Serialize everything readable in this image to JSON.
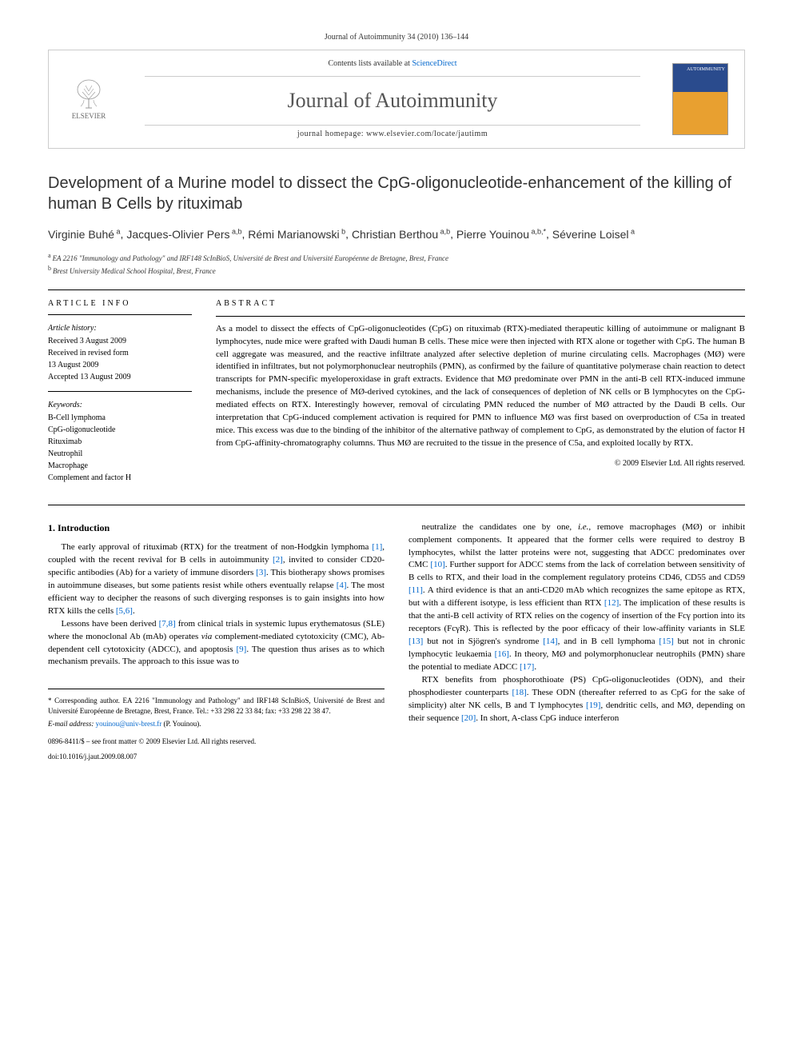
{
  "pageHeader": "Journal of Autoimmunity 34 (2010) 136–144",
  "journalBox": {
    "elsevierLabel": "ELSEVIER",
    "contentsLine": "Contents lists available at ",
    "contentsLink": "ScienceDirect",
    "journalName": "Journal of Autoimmunity",
    "homepageLine": "journal homepage: www.elsevier.com/locate/jautimm",
    "coverTitle": "AUTOIMMUNITY"
  },
  "article": {
    "title": "Development of a Murine model to dissect the CpG-oligonucleotide-enhancement of the killing of human B Cells by rituximab",
    "authorsHtmlParts": [
      {
        "name": "Virginie Buhé",
        "sup": "a"
      },
      {
        "name": "Jacques-Olivier Pers",
        "sup": "a,b"
      },
      {
        "name": "Rémi Marianowski",
        "sup": "b"
      },
      {
        "name": "Christian Berthou",
        "sup": "a,b"
      },
      {
        "name": "Pierre Youinou",
        "sup": "a,b,*"
      },
      {
        "name": "Séverine Loisel",
        "sup": "a"
      }
    ],
    "affiliations": [
      {
        "sup": "a",
        "text": "EA 2216 \"Immunology and Pathology\" and IRF148 ScInBioS, Université de Brest and Université Européenne de Bretagne, Brest, France"
      },
      {
        "sup": "b",
        "text": "Brest University Medical School Hospital, Brest, France"
      }
    ]
  },
  "articleInfo": {
    "heading": "ARTICLE INFO",
    "historyLabel": "Article history:",
    "history": [
      "Received 3 August 2009",
      "Received in revised form",
      "13 August 2009",
      "Accepted 13 August 2009"
    ],
    "keywordsLabel": "Keywords:",
    "keywords": [
      "B-Cell lymphoma",
      "CpG-oligonucleotide",
      "Rituximab",
      "Neutrophil",
      "Macrophage",
      "Complement and factor H"
    ]
  },
  "abstract": {
    "heading": "ABSTRACT",
    "text": "As a model to dissect the effects of CpG-oligonucleotides (CpG) on rituximab (RTX)-mediated therapeutic killing of autoimmune or malignant B lymphocytes, nude mice were grafted with Daudi human B cells. These mice were then injected with RTX alone or together with CpG. The human B cell aggregate was measured, and the reactive infiltrate analyzed after selective depletion of murine circulating cells. Macrophages (MØ) were identified in infiltrates, but not polymorphonuclear neutrophils (PMN), as confirmed by the failure of quantitative polymerase chain reaction to detect transcripts for PMN-specific myeloperoxidase in graft extracts. Evidence that MØ predominate over PMN in the anti-B cell RTX-induced immune mechanisms, include the presence of MØ-derived cytokines, and the lack of consequences of depletion of NK cells or B lymphocytes on the CpG-mediated effects on RTX. Interestingly however, removal of circulating PMN reduced the number of MØ attracted by the Daudi B cells. Our interpretation that CpG-induced complement activation is required for PMN to influence MØ was first based on overproduction of C5a in treated mice. This excess was due to the binding of the inhibitor of the alternative pathway of complement to CpG, as demonstrated by the elution of factor H from CpG-affinity-chromatography columns. Thus MØ are recruited to the tissue in the presence of C5a, and exploited locally by RTX.",
    "copyright": "© 2009 Elsevier Ltd. All rights reserved."
  },
  "body": {
    "section1Heading": "1. Introduction",
    "leftParas": [
      "The early approval of rituximab (RTX) for the treatment of non-Hodgkin lymphoma [1], coupled with the recent revival for B cells in autoimmunity [2], invited to consider CD20-specific antibodies (Ab) for a variety of immune disorders [3]. This biotherapy shows promises in autoimmune diseases, but some patients resist while others eventually relapse [4]. The most efficient way to decipher the reasons of such diverging responses is to gain insights into how RTX kills the cells [5,6].",
      "Lessons have been derived [7,8] from clinical trials in systemic lupus erythematosus (SLE) where the monoclonal Ab (mAb) operates via complement-mediated cytotoxicity (CMC), Ab-dependent cell cytotoxicity (ADCC), and apoptosis [9]. The question thus arises as to which mechanism prevails. The approach to this issue was to"
    ],
    "rightParas": [
      "neutralize the candidates one by one, i.e., remove macrophages (MØ) or inhibit complement components. It appeared that the former cells were required to destroy B lymphocytes, whilst the latter proteins were not, suggesting that ADCC predominates over CMC [10]. Further support for ADCC stems from the lack of correlation between sensitivity of B cells to RTX, and their load in the complement regulatory proteins CD46, CD55 and CD59 [11]. A third evidence is that an anti-CD20 mAb which recognizes the same epitope as RTX, but with a different isotype, is less efficient than RTX [12]. The implication of these results is that the anti-B cell activity of RTX relies on the cogency of insertion of the Fcγ portion into its receptors (FcγR). This is reflected by the poor efficacy of their low-affinity variants in SLE [13] but not in Sjögren's syndrome [14], and in B cell lymphoma [15] but not in chronic lymphocytic leukaemia [16]. In theory, MØ and polymorphonuclear neutrophils (PMN) share the potential to mediate ADCC [17].",
      "RTX benefits from phosphorothioate (PS) CpG-oligonucleotides (ODN), and their phosphodiester counterparts [18]. These ODN (thereafter referred to as CpG for the sake of simplicity) alter NK cells, B and T lymphocytes [19], dendritic cells, and MØ, depending on their sequence [20]. In short, A-class CpG induce interferon"
    ]
  },
  "footnote": {
    "corr": "* Corresponding author. EA 2216 \"Immunology and Pathology\" and IRF148 ScInBioS, Université de Brest and Université Européenne de Bretagne, Brest, France. Tel.: +33 298 22 33 84; fax: +33 298 22 38 47.",
    "emailLabel": "E-mail address: ",
    "email": "youinou@univ-brest.fr",
    "emailSuffix": " (P. Youinou).",
    "issn": "0896-8411/$ – see front matter © 2009 Elsevier Ltd. All rights reserved.",
    "doi": "doi:10.1016/j.jaut.2009.08.007"
  },
  "refColor": "#0066cc"
}
